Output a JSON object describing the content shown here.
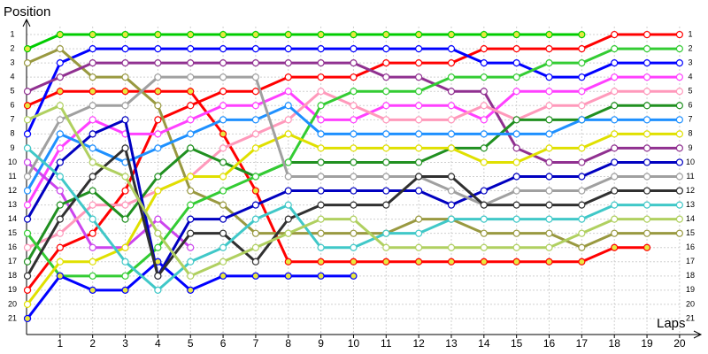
{
  "chart_data": {
    "type": "line",
    "y_label": "Position",
    "x_label": "Laps",
    "x": [
      0,
      1,
      2,
      3,
      4,
      5,
      6,
      7,
      8,
      9,
      10,
      11,
      12,
      13,
      14,
      15,
      16,
      17,
      18,
      19,
      20
    ],
    "xlim": [
      0,
      20.6
    ],
    "xticks": [
      1,
      2,
      3,
      4,
      5,
      6,
      7,
      8,
      9,
      10,
      11,
      12,
      13,
      14,
      15,
      16,
      17,
      18,
      19,
      20
    ],
    "ylim": [
      0,
      22
    ],
    "y_inverted": true,
    "yticks": [
      1,
      2,
      3,
      4,
      5,
      6,
      7,
      8,
      9,
      10,
      11,
      12,
      13,
      14,
      15,
      16,
      17,
      18,
      19,
      20,
      21
    ],
    "grid": true,
    "series": [
      {
        "color": "#00cc00",
        "marker_fill": "#e8e840",
        "values": [
          2,
          1,
          1,
          1,
          1,
          1,
          1,
          1,
          1,
          1,
          1,
          1,
          1,
          1,
          1,
          1,
          1,
          1,
          null,
          null,
          null
        ]
      },
      {
        "color": "#ff0000",
        "values": [
          19,
          16,
          15,
          12,
          7,
          6,
          5,
          5,
          4,
          4,
          4,
          3,
          3,
          3,
          2,
          2,
          2,
          2,
          1,
          1,
          1
        ]
      },
      {
        "color": "#ff0000",
        "marker_fill": "#e8e840",
        "values": [
          6,
          5,
          5,
          5,
          5,
          5,
          8,
          12,
          17,
          17,
          17,
          17,
          17,
          17,
          17,
          17,
          17,
          17,
          16,
          16,
          null
        ]
      },
      {
        "color": "#0000ff",
        "values": [
          8,
          3,
          2,
          2,
          2,
          2,
          2,
          2,
          2,
          2,
          2,
          2,
          2,
          2,
          3,
          3,
          4,
          4,
          3,
          3,
          3
        ]
      },
      {
        "color": "#999940",
        "values": [
          3,
          2,
          4,
          4,
          6,
          12,
          13,
          15,
          15,
          15,
          15,
          15,
          14,
          14,
          15,
          15,
          15,
          16,
          15,
          15,
          15
        ]
      },
      {
        "color": "#903090",
        "values": [
          5,
          4,
          3,
          3,
          3,
          3,
          3,
          3,
          3,
          3,
          3,
          4,
          4,
          5,
          5,
          9,
          10,
          10,
          9,
          9,
          9
        ]
      },
      {
        "color": "#ff40ff",
        "values": [
          13,
          9,
          7,
          8,
          8,
          7,
          6,
          6,
          5,
          7,
          7,
          6,
          6,
          6,
          7,
          5,
          5,
          5,
          4,
          4,
          4
        ]
      },
      {
        "color": "#cc44ee",
        "values": [
          10,
          12,
          16,
          16,
          14,
          16,
          null,
          null,
          null,
          null,
          null,
          null,
          null,
          null,
          null,
          null,
          null,
          null,
          null,
          null,
          null
        ]
      },
      {
        "color": "#ff99bb",
        "values": [
          16,
          15,
          13,
          13,
          12,
          11,
          9,
          8,
          7,
          5,
          6,
          7,
          7,
          7,
          6,
          7,
          6,
          6,
          5,
          5,
          5
        ]
      },
      {
        "color": "#209020",
        "values": [
          17,
          13,
          12,
          14,
          11,
          9,
          10,
          11,
          10,
          10,
          10,
          10,
          10,
          9,
          9,
          7,
          7,
          7,
          6,
          6,
          6
        ]
      },
      {
        "color": "#33cc33",
        "values": [
          15,
          18,
          18,
          18,
          16,
          13,
          12,
          11,
          10,
          6,
          5,
          5,
          5,
          4,
          4,
          4,
          3,
          3,
          2,
          2,
          2
        ]
      },
      {
        "color": "#1e90ff",
        "values": [
          12,
          8,
          9,
          10,
          9,
          8,
          7,
          7,
          6,
          8,
          8,
          8,
          8,
          8,
          8,
          8,
          8,
          7,
          7,
          7,
          7
        ]
      },
      {
        "color": "#e0e000",
        "values": [
          20,
          17,
          17,
          16,
          12,
          11,
          11,
          9,
          8,
          9,
          9,
          9,
          9,
          9,
          10,
          10,
          9,
          9,
          8,
          8,
          8
        ]
      },
      {
        "color": "#0000c0",
        "values": [
          14,
          10,
          8,
          7,
          18,
          14,
          14,
          13,
          12,
          12,
          12,
          12,
          12,
          13,
          12,
          11,
          11,
          11,
          10,
          10,
          10
        ]
      },
      {
        "color": "#0000ff",
        "marker_fill": "#e8e840",
        "values": [
          21,
          18,
          19,
          19,
          17,
          19,
          18,
          18,
          18,
          18,
          18,
          null,
          null,
          null,
          null,
          null,
          null,
          null,
          null,
          null,
          null
        ]
      },
      {
        "color": "#a0a0a0",
        "values": [
          11,
          7,
          6,
          6,
          4,
          4,
          4,
          4,
          11,
          11,
          11,
          11,
          11,
          12,
          13,
          12,
          12,
          12,
          11,
          11,
          11
        ]
      },
      {
        "color": "#303030",
        "values": [
          18,
          14,
          11,
          9,
          18,
          15,
          15,
          17,
          14,
          13,
          13,
          13,
          11,
          11,
          13,
          13,
          13,
          13,
          12,
          12,
          12
        ]
      },
      {
        "color": "#40c8c8",
        "values": [
          9,
          11,
          14,
          17,
          19,
          17,
          16,
          14,
          13,
          16,
          16,
          15,
          15,
          14,
          14,
          14,
          14,
          14,
          13,
          13,
          13
        ]
      },
      {
        "color": "#b0d060",
        "values": [
          7,
          6,
          10,
          11,
          15,
          18,
          17,
          16,
          15,
          14,
          14,
          16,
          16,
          16,
          16,
          16,
          16,
          15,
          14,
          14,
          14
        ]
      }
    ]
  }
}
